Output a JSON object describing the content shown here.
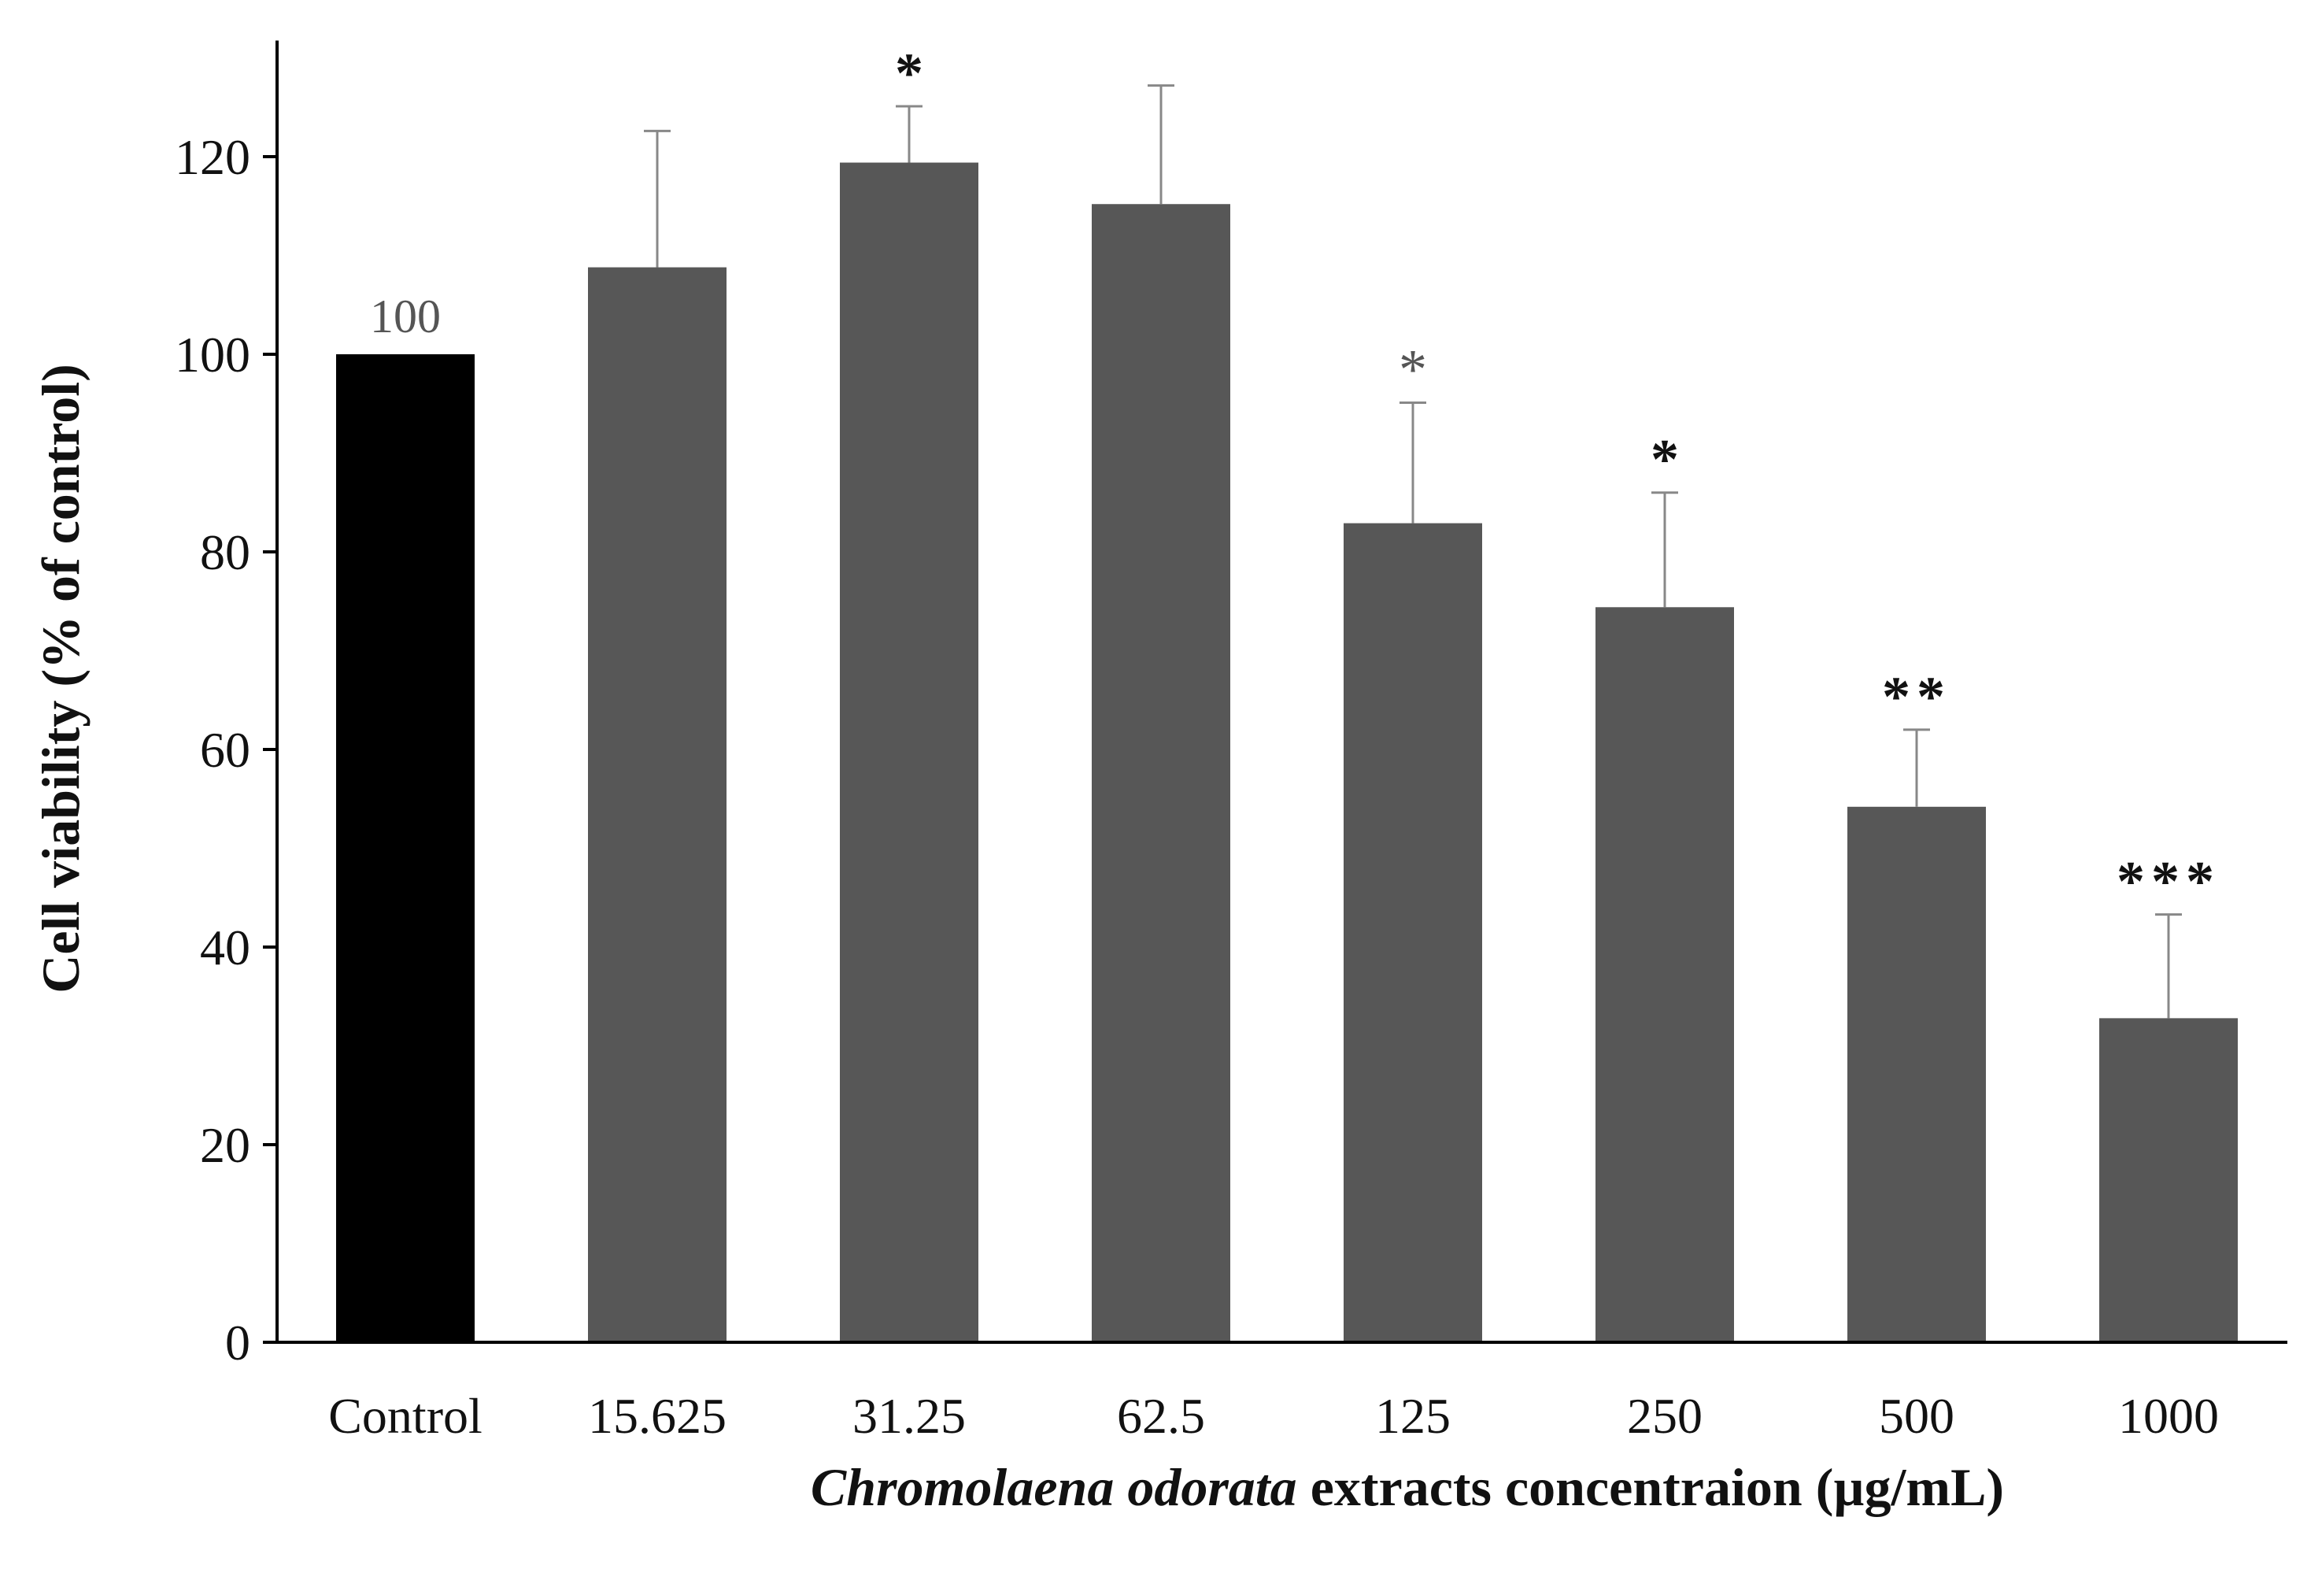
{
  "chart_data": {
    "type": "bar",
    "title": "",
    "categories": [
      "Control",
      "15.625",
      "31.25",
      "62.5",
      "125",
      "250",
      "500",
      "1000"
    ],
    "values": [
      100,
      108.8,
      119.4,
      115.2,
      82.9,
      74.4,
      54.2,
      32.8
    ],
    "error_upper": [
      100,
      122.6,
      125.1,
      127.2,
      95.1,
      86,
      62,
      43.3
    ],
    "significance": [
      "",
      "",
      "*",
      "",
      "*",
      "*",
      "**",
      "***"
    ],
    "value_labels": [
      "100",
      "",
      "",
      "",
      "",
      "",
      "",
      ""
    ],
    "colors": [
      "#000000",
      "#575757",
      "#575757",
      "#575757",
      "#575757",
      "#575757",
      "#575757",
      "#575757"
    ],
    "ylabel": "Cell viability  (% of control)",
    "xlabel_italic": "Chromolaena odorata",
    "xlabel_rest": " extracts concentraion (µg/mL)",
    "ylim": [
      0,
      130
    ],
    "yticks": [
      0,
      20,
      40,
      60,
      80,
      100,
      120
    ],
    "grid": false
  }
}
